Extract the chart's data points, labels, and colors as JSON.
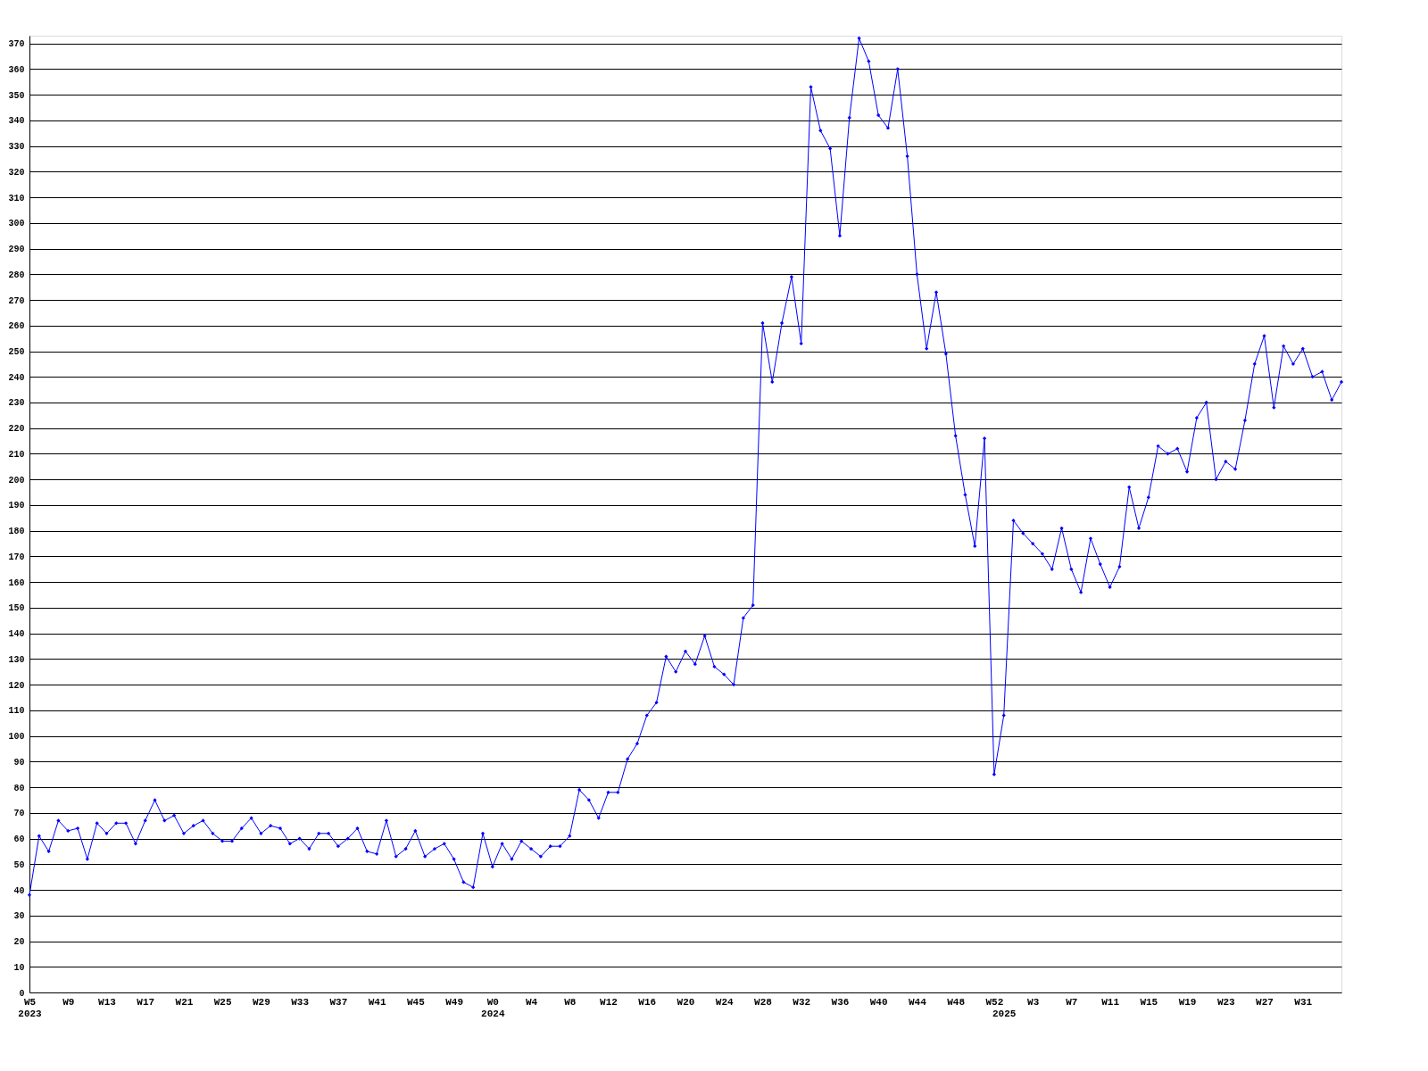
{
  "chart_data": {
    "type": "line",
    "categories": [
      "W5\n2023",
      null,
      null,
      null,
      "W9",
      null,
      null,
      null,
      "W13",
      null,
      null,
      null,
      "W17",
      null,
      null,
      null,
      "W21",
      null,
      null,
      null,
      "W25",
      null,
      null,
      null,
      "W29",
      null,
      null,
      null,
      "W33",
      null,
      null,
      null,
      "W37",
      null,
      null,
      null,
      "W41",
      null,
      null,
      null,
      "W45",
      null,
      null,
      null,
      "W49",
      null,
      null,
      null,
      "W0\n2024",
      null,
      null,
      null,
      "W4",
      null,
      null,
      null,
      "W8",
      null,
      null,
      null,
      "W12",
      null,
      null,
      null,
      "W16",
      null,
      null,
      null,
      "W20",
      null,
      null,
      null,
      "W24",
      null,
      null,
      null,
      "W28",
      null,
      null,
      null,
      "W32",
      null,
      null,
      null,
      "W36",
      null,
      null,
      null,
      "W40",
      null,
      null,
      null,
      "W44",
      null,
      null,
      null,
      "W48",
      null,
      null,
      null,
      "W52",
      "\n2025",
      null,
      null,
      "W3",
      null,
      null,
      null,
      "W7",
      null,
      null,
      null,
      "W11",
      null,
      null,
      null,
      "W15",
      null,
      null,
      null,
      "W19",
      null,
      null,
      null,
      "W23",
      null,
      null,
      null,
      "W27",
      null,
      null,
      null,
      "W31",
      null,
      null,
      null,
      null
    ],
    "series": [
      {
        "color": "#0000ff",
        "values": [
          38,
          61,
          55,
          67,
          63,
          64,
          52,
          66,
          62,
          66,
          66,
          58,
          67,
          75,
          67,
          69,
          62,
          65,
          67,
          62,
          59,
          59,
          64,
          68,
          62,
          65,
          64,
          58,
          60,
          56,
          62,
          62,
          57,
          60,
          64,
          55,
          54,
          67,
          53,
          56,
          63,
          53,
          56,
          58,
          52,
          43,
          41,
          62,
          49,
          58,
          52,
          59,
          56,
          53,
          57,
          57,
          61,
          79,
          75,
          68,
          78,
          78,
          91,
          97,
          108,
          113,
          131,
          125,
          133,
          128,
          139,
          127,
          124,
          120,
          146,
          151,
          261,
          238,
          261,
          279,
          253,
          353,
          336,
          329,
          295,
          341,
          372,
          363,
          342,
          337,
          360,
          326,
          280,
          251,
          273,
          249,
          217,
          194,
          174,
          216,
          85,
          108,
          184,
          179,
          175,
          171,
          165,
          181,
          165,
          156,
          177,
          167,
          158,
          166,
          197,
          181,
          193,
          213,
          210,
          212,
          203,
          224,
          230,
          200,
          207,
          204,
          223,
          245,
          256,
          228,
          252,
          245,
          251,
          240,
          242,
          231,
          238
        ]
      }
    ],
    "ylim": [
      0,
      373
    ],
    "yticks": [
      0,
      10,
      20,
      30,
      40,
      50,
      60,
      70,
      80,
      90,
      100,
      110,
      120,
      130,
      140,
      150,
      160,
      170,
      180,
      190,
      200,
      210,
      220,
      230,
      240,
      250,
      260,
      270,
      280,
      290,
      300,
      310,
      320,
      330,
      340,
      350,
      360,
      370
    ],
    "grid": "y",
    "marker": "diamond",
    "line_style": "solid"
  }
}
